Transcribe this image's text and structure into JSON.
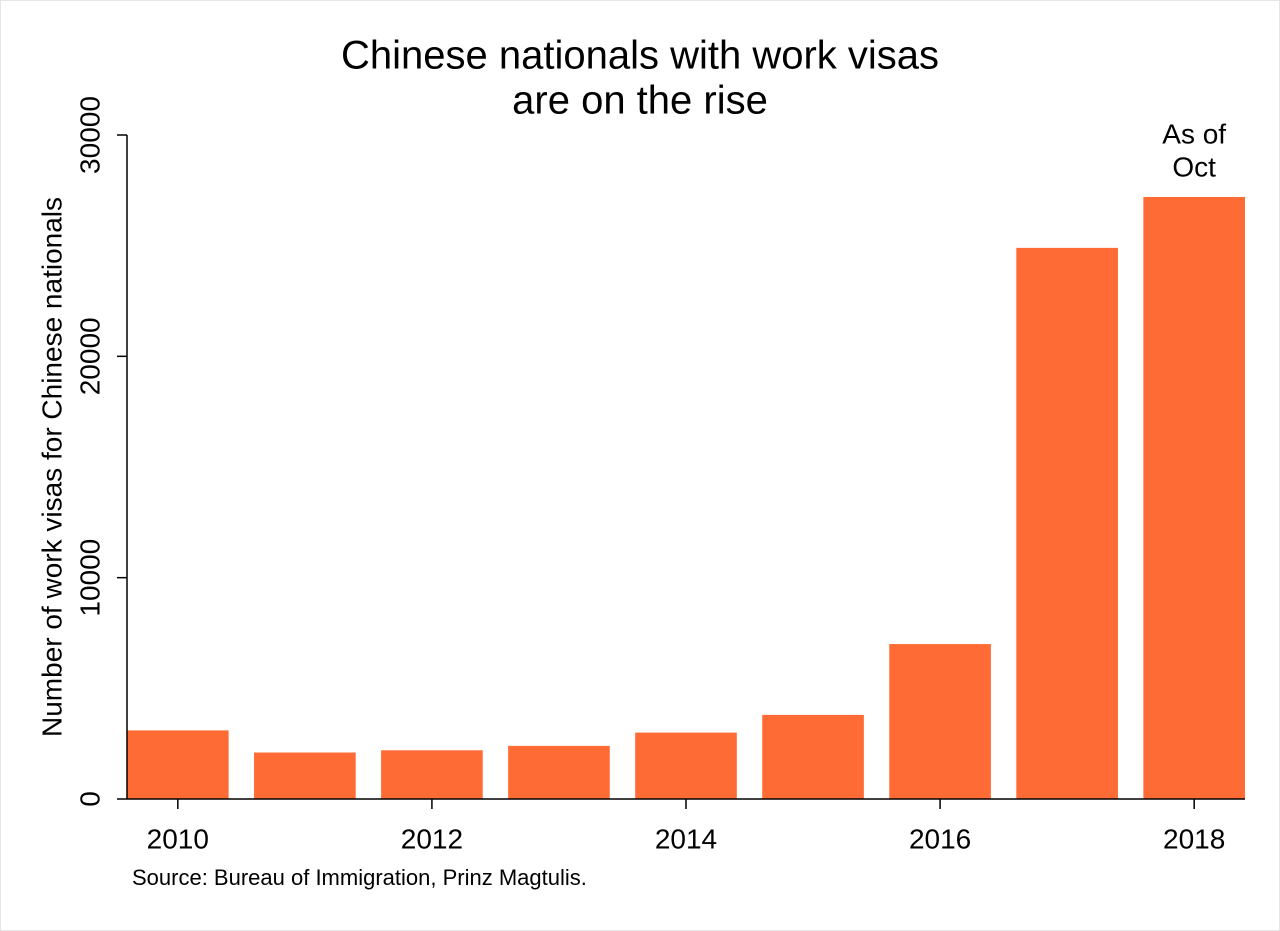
{
  "chart_data": {
    "type": "bar",
    "title": [
      "Chinese nationals with work visas",
      "are on the rise"
    ],
    "y_label": "Number of work visas for Chinese nationals",
    "source": "Source: Bureau of Immigration, Prinz Magtulis.",
    "annotation": {
      "text": [
        "As of",
        "Oct"
      ],
      "x": 2018
    },
    "x": [
      2010,
      2011,
      2012,
      2013,
      2014,
      2015,
      2016,
      2017,
      2018
    ],
    "values": [
      3100,
      2100,
      2200,
      2400,
      3000,
      3800,
      7000,
      24900,
      27200
    ],
    "color": "#ff6b35",
    "xlim": [
      2009.6,
      2018.4
    ],
    "xticks": [
      2010,
      2012,
      2014,
      2016,
      2018
    ],
    "ylim": [
      0,
      30000
    ],
    "yticks": [
      0,
      10000,
      20000,
      30000
    ],
    "grid": false
  }
}
